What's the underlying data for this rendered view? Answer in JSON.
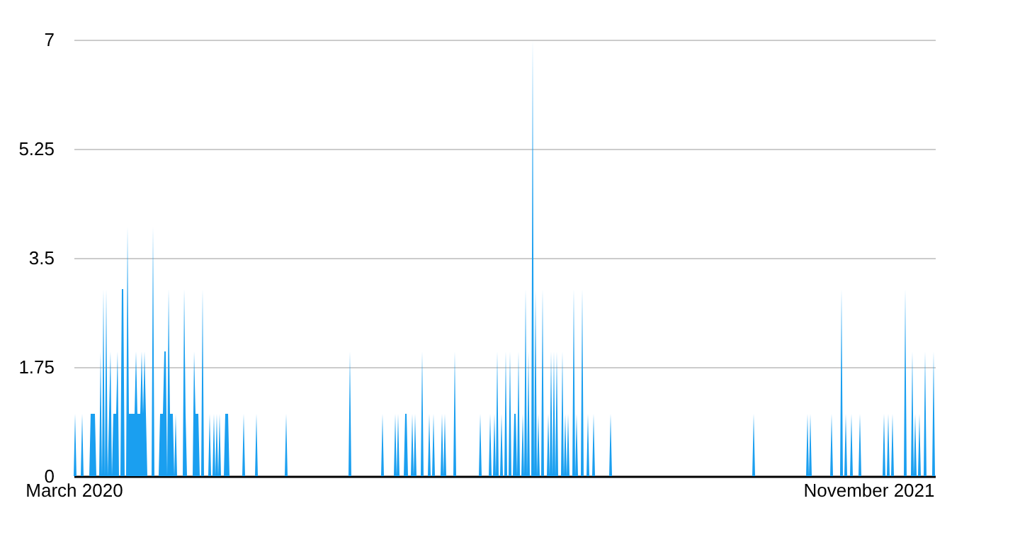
{
  "chart_data": {
    "type": "area",
    "color": "#1a9ff0",
    "ylim": [
      0,
      7
    ],
    "yticks": [
      0,
      1.75,
      3.5,
      5.25,
      7
    ],
    "grid": "y",
    "categories": [
      "March 2020",
      null,
      null,
      null,
      null,
      null,
      null,
      null,
      null,
      null,
      null,
      null,
      null,
      null,
      null,
      null,
      null,
      null,
      null,
      null,
      null,
      null,
      null,
      null,
      null,
      null,
      null,
      null,
      null,
      null,
      null,
      null,
      null,
      null,
      null,
      null,
      null,
      null,
      null,
      null,
      null,
      null,
      null,
      null,
      null,
      null,
      null,
      null,
      null,
      null,
      null,
      null,
      null,
      null,
      null,
      null,
      null,
      null,
      null,
      null,
      null,
      null,
      null,
      null,
      null,
      null,
      null,
      null,
      null,
      null,
      null,
      null,
      null,
      null,
      null,
      null,
      null,
      null,
      null,
      null,
      null,
      null,
      null,
      null,
      null,
      null,
      null,
      null,
      null,
      null,
      null,
      null,
      null,
      null,
      null,
      null,
      null,
      null,
      null,
      null,
      null,
      null,
      null,
      null,
      null,
      null,
      null,
      null,
      null,
      null,
      null,
      null,
      null,
      null,
      null,
      null,
      null,
      null,
      null,
      null,
      null,
      null,
      null,
      null,
      null,
      null,
      null,
      null,
      null,
      null,
      null,
      null,
      null,
      null,
      null,
      null,
      null,
      null,
      null,
      null,
      null,
      null,
      null,
      null,
      null,
      null,
      null,
      null,
      null,
      null,
      null,
      null,
      null,
      null,
      null,
      null,
      null,
      null,
      null,
      null,
      null,
      null,
      null,
      null,
      null,
      null,
      null,
      null,
      null,
      null,
      null,
      null,
      null,
      null,
      null,
      null,
      null,
      null,
      null,
      null,
      null,
      null,
      null,
      null,
      null,
      null,
      null,
      null,
      null,
      null,
      null,
      null,
      null,
      null,
      null,
      null,
      null,
      null,
      null,
      null,
      null,
      null,
      null,
      null,
      null,
      null,
      null,
      null,
      null,
      null,
      null,
      null,
      null,
      null,
      null,
      null,
      null,
      null,
      null,
      null,
      null,
      null,
      null,
      null,
      null,
      null,
      null,
      null,
      null,
      null,
      null,
      null,
      null,
      null,
      null,
      null,
      null,
      null,
      null,
      null,
      null,
      null,
      null,
      null,
      null,
      null,
      null,
      null,
      null,
      null,
      null,
      null,
      null,
      null,
      null,
      null,
      null,
      null,
      null,
      null,
      null,
      null,
      null,
      null,
      null,
      null,
      null,
      null,
      null,
      null,
      null,
      null,
      null,
      null,
      null,
      null,
      null,
      null,
      null,
      null,
      null,
      null,
      null,
      null,
      null,
      null,
      null,
      null,
      null,
      null,
      null,
      null,
      null,
      null,
      null,
      null,
      null,
      null,
      null,
      null,
      null,
      null,
      null,
      null,
      null,
      null,
      null,
      null,
      null,
      null,
      null,
      null,
      null,
      null,
      null,
      null,
      null,
      null,
      null,
      null,
      null,
      null,
      null,
      null,
      null,
      null,
      null,
      null,
      null,
      null,
      null,
      null,
      null,
      null,
      null,
      null,
      null,
      null,
      null,
      null,
      null,
      null,
      null,
      null,
      null,
      null,
      null,
      null,
      null,
      null,
      null,
      null,
      null,
      null,
      null,
      null,
      null,
      null,
      null,
      null,
      null,
      null,
      null,
      null,
      null,
      null,
      null,
      null,
      null,
      null,
      null,
      null,
      null,
      null,
      null,
      null,
      null,
      null,
      null,
      null,
      null,
      null,
      null,
      null,
      null,
      null,
      null,
      null,
      null,
      null,
      null,
      null,
      null,
      null,
      null,
      null,
      null,
      null,
      null,
      null,
      null,
      null,
      null,
      null,
      null,
      null,
      null,
      null,
      null,
      null,
      null,
      null,
      null,
      null,
      null,
      null,
      null,
      null,
      null,
      null,
      null,
      null,
      null,
      null,
      null,
      null,
      null,
      null,
      null,
      null,
      null,
      null,
      null,
      null,
      null,
      null,
      null,
      null,
      null,
      null,
      null,
      null,
      null,
      null,
      null,
      null,
      null,
      null,
      null,
      null,
      null,
      null,
      null,
      null,
      null,
      null,
      null,
      null,
      null,
      null,
      null,
      null,
      null,
      null,
      null,
      null,
      null,
      null,
      null,
      null,
      null,
      null,
      null,
      null,
      null,
      null,
      null,
      null,
      null,
      null,
      null,
      null,
      null,
      null,
      null,
      null,
      null,
      null,
      null,
      null,
      null,
      null,
      null,
      null,
      null,
      null,
      null,
      null,
      null,
      null,
      null,
      null,
      null,
      null,
      null,
      null,
      null,
      null,
      null,
      null,
      null,
      null,
      null,
      null,
      null,
      null,
      null,
      null,
      null,
      null,
      null,
      null,
      null,
      null,
      null,
      null,
      null,
      null,
      null,
      null,
      null,
      null,
      null,
      null,
      null,
      null,
      null,
      null,
      null,
      null,
      null,
      null,
      null,
      null,
      null,
      null,
      null,
      null,
      null,
      null,
      null,
      null,
      null,
      null,
      null,
      null,
      null,
      null,
      null,
      null,
      null,
      "November 2021",
      null,
      null,
      null,
      null,
      null,
      null,
      null,
      null,
      null,
      null,
      null,
      null,
      null,
      null,
      null,
      null,
      null,
      null,
      null,
      null,
      null,
      null,
      null,
      null,
      null,
      null,
      null,
      null,
      null,
      null,
      null,
      null,
      null,
      null,
      null,
      null,
      null,
      null,
      null,
      null,
      null,
      null,
      null,
      null,
      null,
      null,
      null
    ],
    "values": [
      0,
      1,
      0,
      0,
      0,
      0,
      1,
      0,
      0,
      0,
      0,
      0,
      1,
      1,
      1,
      1,
      0,
      0,
      0,
      2,
      0,
      3,
      0,
      3,
      0,
      1,
      2,
      0,
      1,
      1,
      1,
      2,
      0,
      0,
      3,
      3,
      0,
      0,
      4,
      1,
      1,
      1,
      1,
      1,
      2,
      1,
      1,
      1,
      2,
      1,
      2,
      1,
      0,
      0,
      0,
      0,
      4,
      0,
      0,
      0,
      0,
      1,
      1,
      1,
      2,
      2,
      0,
      3,
      1,
      1,
      1,
      0,
      1,
      0,
      0,
      0,
      0,
      0,
      3,
      1,
      0,
      0,
      0,
      0,
      0,
      2,
      1,
      1,
      1,
      0,
      0,
      3,
      0,
      0,
      0,
      0,
      1,
      0,
      0,
      1,
      0,
      1,
      0,
      1,
      0,
      0,
      0,
      1,
      1,
      1,
      0,
      0,
      0,
      0,
      0,
      0,
      0,
      0,
      0,
      0,
      1,
      0,
      0,
      0,
      0,
      0,
      0,
      0,
      0,
      1,
      0,
      0,
      0,
      0,
      0,
      0,
      0,
      0,
      0,
      0,
      0,
      0,
      0,
      0,
      0,
      0,
      0,
      0,
      0,
      0,
      1,
      0,
      0,
      0,
      0,
      0,
      0,
      0,
      0,
      0,
      0,
      0,
      0,
      0,
      0,
      0,
      0,
      0,
      0,
      0,
      0,
      0,
      0,
      0,
      0,
      0,
      0,
      0,
      0,
      0,
      0,
      0,
      0,
      0,
      0,
      0,
      0,
      0,
      0,
      0,
      0,
      0,
      0,
      0,
      0,
      2,
      0,
      0,
      0,
      0,
      0,
      0,
      0,
      0,
      0,
      0,
      0,
      0,
      0,
      0,
      0,
      0,
      0,
      0,
      0,
      0,
      0,
      0,
      1,
      0,
      0,
      0,
      0,
      0,
      0,
      0,
      0,
      1,
      0,
      1,
      0,
      0,
      0,
      0,
      1,
      1,
      0,
      0,
      0,
      1,
      0,
      1,
      0,
      0,
      0,
      0,
      2,
      0,
      0,
      0,
      0,
      1,
      0,
      0,
      1,
      0,
      0,
      0,
      0,
      0,
      1,
      0,
      1,
      0,
      0,
      0,
      0,
      0,
      0,
      2,
      0,
      0,
      0,
      0,
      0,
      0,
      0,
      0,
      0,
      0,
      0,
      0,
      0,
      0,
      0,
      0,
      0,
      1,
      0,
      0,
      0,
      0,
      0,
      0,
      1,
      0,
      0,
      1,
      0,
      2,
      0,
      0,
      1,
      0,
      0,
      2,
      0,
      0,
      2,
      0,
      0,
      1,
      1,
      0,
      2,
      0,
      0,
      1,
      0,
      3,
      0,
      2,
      0,
      0,
      7,
      0,
      3,
      0,
      1,
      0,
      0,
      3,
      0,
      0,
      0,
      1,
      0,
      2,
      0,
      2,
      0,
      2,
      0,
      0,
      0,
      2,
      0,
      1,
      0,
      1,
      0,
      0,
      0,
      3,
      0,
      1,
      0,
      0,
      0,
      3,
      0,
      0,
      0,
      1,
      0,
      0,
      0,
      1,
      0,
      0,
      0,
      0,
      0,
      0,
      0,
      0,
      0,
      0,
      0,
      1,
      0,
      0,
      0,
      0,
      0,
      0,
      0,
      0,
      0,
      0,
      0,
      0,
      0,
      0,
      0,
      0,
      0,
      0,
      0,
      0,
      0,
      0,
      0,
      0,
      0,
      0,
      0,
      0,
      0,
      0,
      0,
      0,
      0,
      0,
      0,
      0,
      0,
      0,
      0,
      0,
      0,
      0,
      0,
      0,
      0,
      0,
      0,
      0,
      0,
      0,
      0,
      0,
      0,
      0,
      0,
      0,
      0,
      0,
      0,
      0,
      0,
      0,
      0,
      0,
      0,
      0,
      0,
      0,
      0,
      0,
      0,
      0,
      0,
      0,
      0,
      0,
      0,
      0,
      0,
      0,
      0,
      0,
      0,
      0,
      0,
      0,
      0,
      0,
      0,
      0,
      0,
      0,
      0,
      0,
      0,
      0,
      0,
      0,
      0,
      0,
      1,
      0,
      0,
      0,
      0,
      0,
      0,
      0,
      0,
      0,
      0,
      0,
      0,
      0,
      0,
      0,
      0,
      0,
      0,
      0,
      0,
      0,
      0,
      0,
      0,
      0,
      0,
      0,
      0,
      0,
      0,
      0,
      0,
      0,
      0,
      0,
      0,
      0,
      1,
      0,
      1,
      0,
      0,
      0,
      0,
      0,
      0,
      0,
      0,
      0,
      0,
      0,
      0,
      0,
      0,
      1,
      0,
      0,
      0,
      0,
      0,
      0,
      3,
      0,
      0,
      1,
      0,
      0,
      0,
      1,
      0,
      0,
      0,
      0,
      0,
      1,
      0,
      0,
      0,
      0,
      0,
      0,
      0,
      0,
      0,
      0,
      0,
      0,
      0,
      0,
      0,
      0,
      1,
      0,
      0,
      1,
      0,
      0,
      1,
      0,
      0,
      0,
      0,
      0,
      0,
      0,
      0,
      3,
      0,
      0,
      0,
      0,
      2,
      0,
      1,
      0,
      0,
      1,
      0,
      0,
      0,
      2,
      0,
      0,
      0,
      0,
      0,
      2,
      0
    ]
  }
}
